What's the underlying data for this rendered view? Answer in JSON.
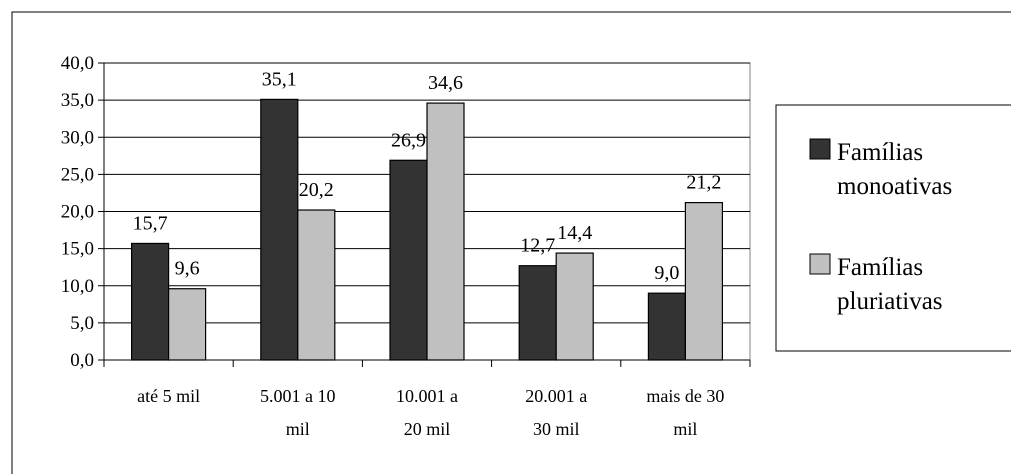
{
  "chart_data": {
    "type": "bar",
    "categories": [
      [
        "até 5 mil"
      ],
      [
        "5.001 a 10",
        "mil"
      ],
      [
        "10.001 a",
        "20 mil"
      ],
      [
        "20.001 a",
        "30 mil"
      ],
      [
        "mais de 30",
        "mil"
      ]
    ],
    "series": [
      {
        "name": [
          "Famílias",
          "monoativas"
        ],
        "values": [
          15.7,
          35.1,
          26.9,
          12.7,
          9.0
        ],
        "labels": [
          "15,7",
          "35,1",
          "26,9",
          "12,7",
          "9,0"
        ],
        "color": "#333333"
      },
      {
        "name": [
          "Famílias",
          "pluriativas"
        ],
        "values": [
          9.6,
          20.2,
          34.6,
          14.4,
          21.2
        ],
        "labels": [
          "9,6",
          "20,2",
          "34,6",
          "14,4",
          "21,2"
        ],
        "color": "#c0c0c0"
      }
    ],
    "yticks": [
      0,
      5,
      10,
      15,
      20,
      25,
      30,
      35,
      40
    ],
    "ytick_labels": [
      "0,0",
      "5,0",
      "10,0",
      "15,0",
      "20,0",
      "25,0",
      "30,0",
      "35,0",
      "40,0"
    ],
    "ylim": [
      0,
      40
    ],
    "grid": true,
    "legend_position": "right"
  }
}
